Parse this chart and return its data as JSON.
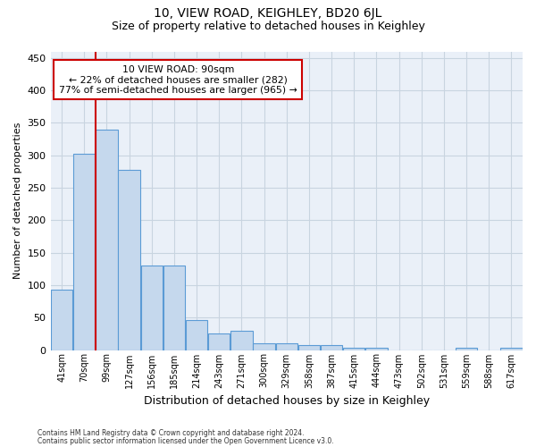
{
  "title": "10, VIEW ROAD, KEIGHLEY, BD20 6JL",
  "subtitle": "Size of property relative to detached houses in Keighley",
  "xlabel": "Distribution of detached houses by size in Keighley",
  "ylabel": "Number of detached properties",
  "footnote1": "Contains HM Land Registry data © Crown copyright and database right 2024.",
  "footnote2": "Contains public sector information licensed under the Open Government Licence v3.0.",
  "categories": [
    "41sqm",
    "70sqm",
    "99sqm",
    "127sqm",
    "156sqm",
    "185sqm",
    "214sqm",
    "243sqm",
    "271sqm",
    "300sqm",
    "329sqm",
    "358sqm",
    "387sqm",
    "415sqm",
    "444sqm",
    "473sqm",
    "502sqm",
    "531sqm",
    "559sqm",
    "588sqm",
    "617sqm"
  ],
  "values": [
    93,
    303,
    340,
    278,
    130,
    130,
    46,
    26,
    30,
    10,
    10,
    8,
    8,
    4,
    4,
    0,
    0,
    0,
    4,
    0,
    4
  ],
  "bar_color": "#c5d8ed",
  "bar_edge_color": "#5b9bd5",
  "vline_x": 1.5,
  "vline_color": "#cc0000",
  "annotation_text": "10 VIEW ROAD: 90sqm\n← 22% of detached houses are smaller (282)\n77% of semi-detached houses are larger (965) →",
  "annotation_box_color": "#ffffff",
  "annotation_box_edge": "#cc0000",
  "ylim": [
    0,
    460
  ],
  "yticks": [
    0,
    50,
    100,
    150,
    200,
    250,
    300,
    350,
    400,
    450
  ],
  "bg_color": "#eaf0f8",
  "title_fontsize": 10,
  "subtitle_fontsize": 9,
  "grid_color": "#c8d4e0"
}
